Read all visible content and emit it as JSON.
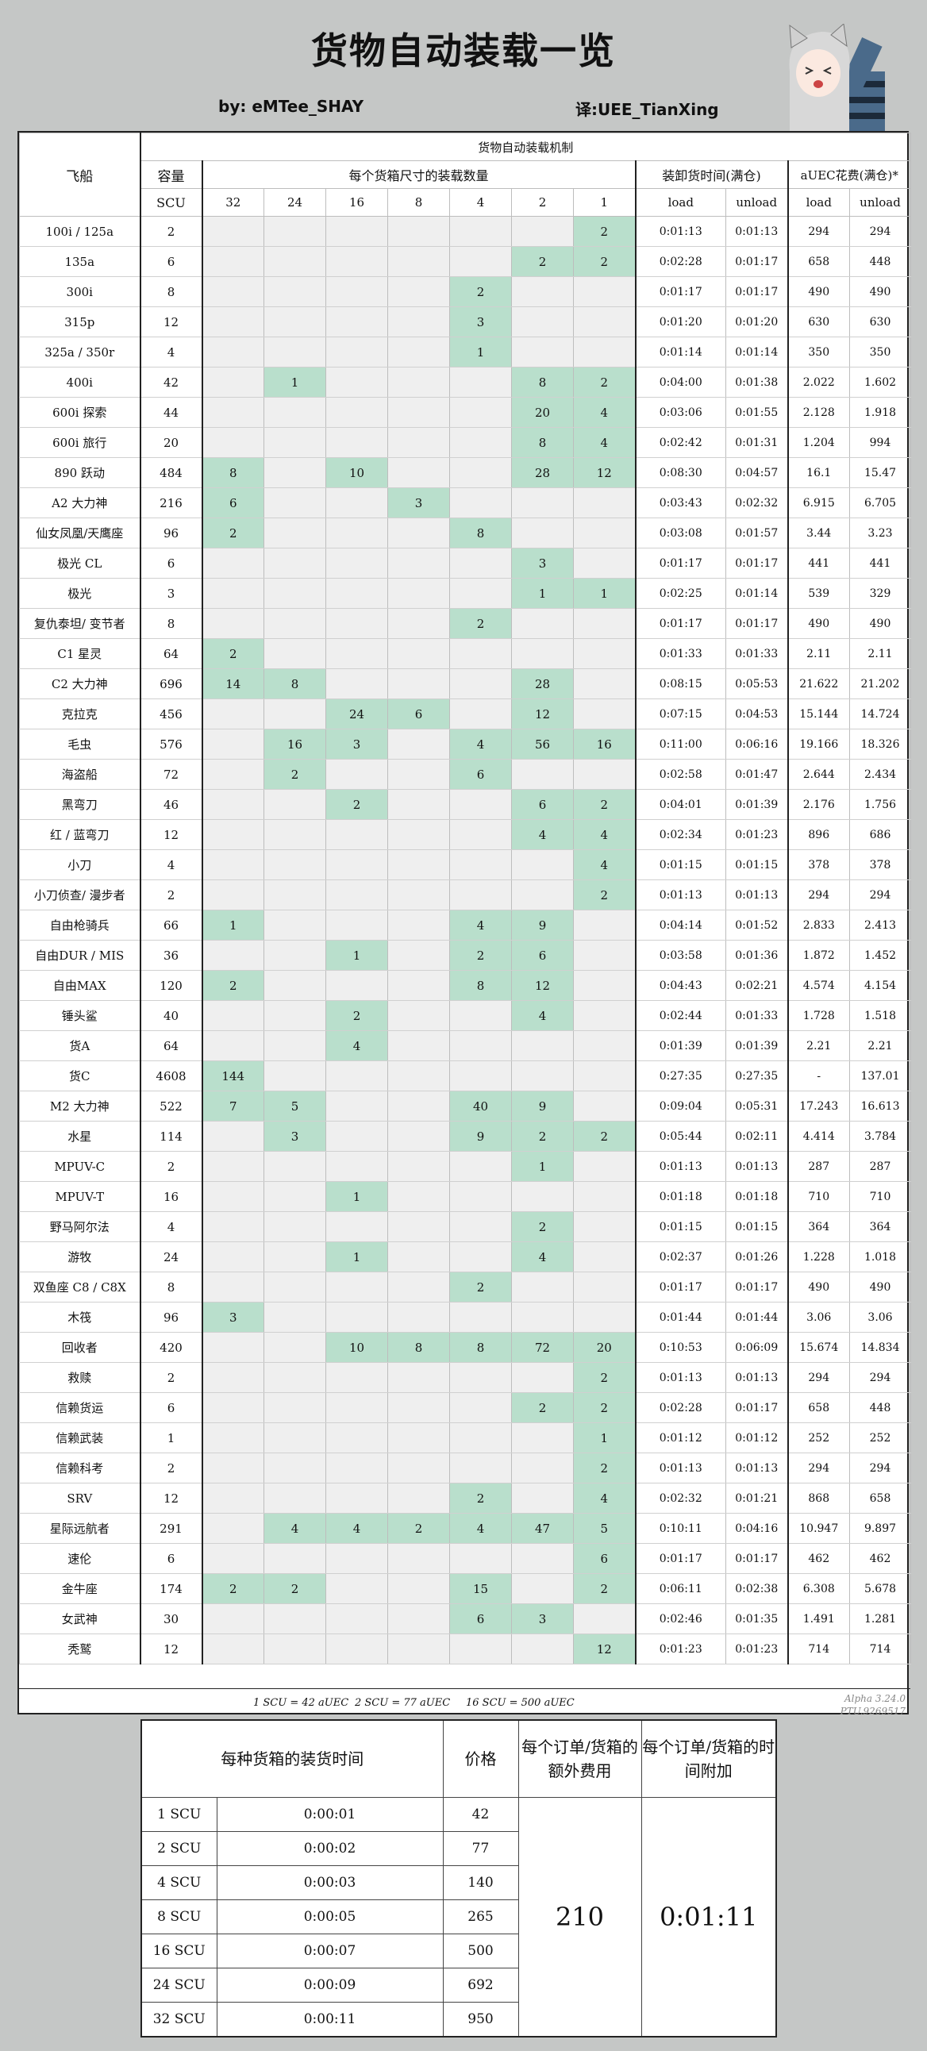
{
  "title": "货物自动装载一览",
  "by": "by:  eMTee_SHAY",
  "translator": "译:UEE_TianXing",
  "table": {
    "section_title": "货物自动装载机制",
    "col_ship": "飞船",
    "col_capacity": "容量",
    "col_capacity_unit": "SCU",
    "col_boxes": "每个货箱尺寸的装载数量",
    "box_sizes": [
      "32",
      "24",
      "16",
      "8",
      "4",
      "2",
      "1"
    ],
    "col_time": "装卸货时间(满仓)",
    "col_cost": "aUEC花费(满仓)*",
    "load": "load",
    "unload": "unload",
    "rows": [
      {
        "ship": "100i / 125a",
        "scu": "2",
        "boxes": [
          "",
          "",
          "",
          "",
          "",
          "",
          "2"
        ],
        "load": "0:01:13",
        "unload": "0:01:13",
        "cost_load": "294",
        "cost_unload": "294"
      },
      {
        "ship": "135a",
        "scu": "6",
        "boxes": [
          "",
          "",
          "",
          "",
          "",
          "2",
          "2"
        ],
        "load": "0:02:28",
        "unload": "0:01:17",
        "cost_load": "658",
        "cost_unload": "448"
      },
      {
        "ship": "300i",
        "scu": "8",
        "boxes": [
          "",
          "",
          "",
          "",
          "2",
          "",
          ""
        ],
        "load": "0:01:17",
        "unload": "0:01:17",
        "cost_load": "490",
        "cost_unload": "490"
      },
      {
        "ship": "315p",
        "scu": "12",
        "boxes": [
          "",
          "",
          "",
          "",
          "3",
          "",
          ""
        ],
        "load": "0:01:20",
        "unload": "0:01:20",
        "cost_load": "630",
        "cost_unload": "630"
      },
      {
        "ship": "325a / 350r",
        "scu": "4",
        "boxes": [
          "",
          "",
          "",
          "",
          "1",
          "",
          ""
        ],
        "load": "0:01:14",
        "unload": "0:01:14",
        "cost_load": "350",
        "cost_unload": "350"
      },
      {
        "ship": "400i",
        "scu": "42",
        "boxes": [
          "",
          "1",
          "",
          "",
          "",
          "8",
          "2"
        ],
        "load": "0:04:00",
        "unload": "0:01:38",
        "cost_load": "2.022",
        "cost_unload": "1.602"
      },
      {
        "ship": "600i 探索",
        "scu": "44",
        "boxes": [
          "",
          "",
          "",
          "",
          "",
          "20",
          "4"
        ],
        "load": "0:03:06",
        "unload": "0:01:55",
        "cost_load": "2.128",
        "cost_unload": "1.918"
      },
      {
        "ship": "600i 旅行",
        "scu": "20",
        "boxes": [
          "",
          "",
          "",
          "",
          "",
          "8",
          "4"
        ],
        "load": "0:02:42",
        "unload": "0:01:31",
        "cost_load": "1.204",
        "cost_unload": "994"
      },
      {
        "ship": "890 跃动",
        "scu": "484",
        "boxes": [
          "8",
          "",
          "10",
          "",
          "",
          "28",
          "12"
        ],
        "load": "0:08:30",
        "unload": "0:04:57",
        "cost_load": "16.1",
        "cost_unload": "15.47"
      },
      {
        "ship": "A2 大力神",
        "scu": "216",
        "boxes": [
          "6",
          "",
          "",
          "3",
          "",
          "",
          ""
        ],
        "load": "0:03:43",
        "unload": "0:02:32",
        "cost_load": "6.915",
        "cost_unload": "6.705"
      },
      {
        "ship": "仙女凤凰/天鹰座",
        "scu": "96",
        "boxes": [
          "2",
          "",
          "",
          "",
          "8",
          "",
          ""
        ],
        "load": "0:03:08",
        "unload": "0:01:57",
        "cost_load": "3.44",
        "cost_unload": "3.23"
      },
      {
        "ship": "极光 CL",
        "scu": "6",
        "boxes": [
          "",
          "",
          "",
          "",
          "",
          "3",
          ""
        ],
        "load": "0:01:17",
        "unload": "0:01:17",
        "cost_load": "441",
        "cost_unload": "441"
      },
      {
        "ship": "极光",
        "scu": "3",
        "boxes": [
          "",
          "",
          "",
          "",
          "",
          "1",
          "1"
        ],
        "load": "0:02:25",
        "unload": "0:01:14",
        "cost_load": "539",
        "cost_unload": "329"
      },
      {
        "ship": "复仇泰坦/ 变节者",
        "scu": "8",
        "boxes": [
          "",
          "",
          "",
          "",
          "2",
          "",
          ""
        ],
        "load": "0:01:17",
        "unload": "0:01:17",
        "cost_load": "490",
        "cost_unload": "490"
      },
      {
        "ship": "C1 星灵",
        "scu": "64",
        "boxes": [
          "2",
          "",
          "",
          "",
          "",
          "",
          ""
        ],
        "load": "0:01:33",
        "unload": "0:01:33",
        "cost_load": "2.11",
        "cost_unload": "2.11"
      },
      {
        "ship": "C2 大力神",
        "scu": "696",
        "boxes": [
          "14",
          "8",
          "",
          "",
          "",
          "28",
          ""
        ],
        "load": "0:08:15",
        "unload": "0:05:53",
        "cost_load": "21.622",
        "cost_unload": "21.202"
      },
      {
        "ship": "克拉克",
        "scu": "456",
        "boxes": [
          "",
          "",
          "24",
          "6",
          "",
          "12",
          ""
        ],
        "load": "0:07:15",
        "unload": "0:04:53",
        "cost_load": "15.144",
        "cost_unload": "14.724"
      },
      {
        "ship": "毛虫",
        "scu": "576",
        "boxes": [
          "",
          "16",
          "3",
          "",
          "4",
          "56",
          "16"
        ],
        "load": "0:11:00",
        "unload": "0:06:16",
        "cost_load": "19.166",
        "cost_unload": "18.326"
      },
      {
        "ship": "海盗船",
        "scu": "72",
        "boxes": [
          "",
          "2",
          "",
          "",
          "6",
          "",
          ""
        ],
        "load": "0:02:58",
        "unload": "0:01:47",
        "cost_load": "2.644",
        "cost_unload": "2.434"
      },
      {
        "ship": "黑弯刀",
        "scu": "46",
        "boxes": [
          "",
          "",
          "2",
          "",
          "",
          "6",
          "2"
        ],
        "load": "0:04:01",
        "unload": "0:01:39",
        "cost_load": "2.176",
        "cost_unload": "1.756"
      },
      {
        "ship": "红 / 蓝弯刀",
        "scu": "12",
        "boxes": [
          "",
          "",
          "",
          "",
          "",
          "4",
          "4"
        ],
        "load": "0:02:34",
        "unload": "0:01:23",
        "cost_load": "896",
        "cost_unload": "686"
      },
      {
        "ship": "小刀",
        "scu": "4",
        "boxes": [
          "",
          "",
          "",
          "",
          "",
          "",
          "4"
        ],
        "load": "0:01:15",
        "unload": "0:01:15",
        "cost_load": "378",
        "cost_unload": "378"
      },
      {
        "ship": "小刀侦查/ 漫步者",
        "scu": "2",
        "boxes": [
          "",
          "",
          "",
          "",
          "",
          "",
          "2"
        ],
        "load": "0:01:13",
        "unload": "0:01:13",
        "cost_load": "294",
        "cost_unload": "294"
      },
      {
        "ship": "自由枪骑兵",
        "scu": "66",
        "boxes": [
          "1",
          "",
          "",
          "",
          "4",
          "9",
          ""
        ],
        "load": "0:04:14",
        "unload": "0:01:52",
        "cost_load": "2.833",
        "cost_unload": "2.413"
      },
      {
        "ship": "自由DUR / MIS",
        "scu": "36",
        "boxes": [
          "",
          "",
          "1",
          "",
          "2",
          "6",
          ""
        ],
        "load": "0:03:58",
        "unload": "0:01:36",
        "cost_load": "1.872",
        "cost_unload": "1.452"
      },
      {
        "ship": "自由MAX",
        "scu": "120",
        "boxes": [
          "2",
          "",
          "",
          "",
          "8",
          "12",
          ""
        ],
        "load": "0:04:43",
        "unload": "0:02:21",
        "cost_load": "4.574",
        "cost_unload": "4.154"
      },
      {
        "ship": "锤头鲨",
        "scu": "40",
        "boxes": [
          "",
          "",
          "2",
          "",
          "",
          "4",
          ""
        ],
        "load": "0:02:44",
        "unload": "0:01:33",
        "cost_load": "1.728",
        "cost_unload": "1.518"
      },
      {
        "ship": "货A",
        "scu": "64",
        "boxes": [
          "",
          "",
          "4",
          "",
          "",
          "",
          ""
        ],
        "load": "0:01:39",
        "unload": "0:01:39",
        "cost_load": "2.21",
        "cost_unload": "2.21"
      },
      {
        "ship": "货C",
        "scu": "4608",
        "boxes": [
          "144",
          "",
          "",
          "",
          "",
          "",
          ""
        ],
        "load": "0:27:35",
        "unload": "0:27:35",
        "cost_load": "-",
        "cost_unload": "137.01"
      },
      {
        "ship": "M2 大力神",
        "scu": "522",
        "boxes": [
          "7",
          "5",
          "",
          "",
          "40",
          "9",
          ""
        ],
        "load": "0:09:04",
        "unload": "0:05:31",
        "cost_load": "17.243",
        "cost_unload": "16.613"
      },
      {
        "ship": "水星",
        "scu": "114",
        "boxes": [
          "",
          "3",
          "",
          "",
          "9",
          "2",
          "2"
        ],
        "load": "0:05:44",
        "unload": "0:02:11",
        "cost_load": "4.414",
        "cost_unload": "3.784"
      },
      {
        "ship": "MPUV-C",
        "scu": "2",
        "boxes": [
          "",
          "",
          "",
          "",
          "",
          "1",
          ""
        ],
        "load": "0:01:13",
        "unload": "0:01:13",
        "cost_load": "287",
        "cost_unload": "287"
      },
      {
        "ship": "MPUV-T",
        "scu": "16",
        "boxes": [
          "",
          "",
          "1",
          "",
          "",
          "",
          ""
        ],
        "load": "0:01:18",
        "unload": "0:01:18",
        "cost_load": "710",
        "cost_unload": "710"
      },
      {
        "ship": "野马阿尔法",
        "scu": "4",
        "boxes": [
          "",
          "",
          "",
          "",
          "",
          "2",
          ""
        ],
        "load": "0:01:15",
        "unload": "0:01:15",
        "cost_load": "364",
        "cost_unload": "364"
      },
      {
        "ship": "游牧",
        "scu": "24",
        "boxes": [
          "",
          "",
          "1",
          "",
          "",
          "4",
          ""
        ],
        "load": "0:02:37",
        "unload": "0:01:26",
        "cost_load": "1.228",
        "cost_unload": "1.018"
      },
      {
        "ship": "双鱼座 C8 / C8X",
        "scu": "8",
        "boxes": [
          "",
          "",
          "",
          "",
          "2",
          "",
          ""
        ],
        "load": "0:01:17",
        "unload": "0:01:17",
        "cost_load": "490",
        "cost_unload": "490"
      },
      {
        "ship": "木筏",
        "scu": "96",
        "boxes": [
          "3",
          "",
          "",
          "",
          "",
          "",
          ""
        ],
        "load": "0:01:44",
        "unload": "0:01:44",
        "cost_load": "3.06",
        "cost_unload": "3.06"
      },
      {
        "ship": "回收者",
        "scu": "420",
        "boxes": [
          "",
          "",
          "10",
          "8",
          "8",
          "72",
          "20"
        ],
        "load": "0:10:53",
        "unload": "0:06:09",
        "cost_load": "15.674",
        "cost_unload": "14.834"
      },
      {
        "ship": "救赎",
        "scu": "2",
        "boxes": [
          "",
          "",
          "",
          "",
          "",
          "",
          "2"
        ],
        "load": "0:01:13",
        "unload": "0:01:13",
        "cost_load": "294",
        "cost_unload": "294"
      },
      {
        "ship": "信赖货运",
        "scu": "6",
        "boxes": [
          "",
          "",
          "",
          "",
          "",
          "2",
          "2"
        ],
        "load": "0:02:28",
        "unload": "0:01:17",
        "cost_load": "658",
        "cost_unload": "448"
      },
      {
        "ship": "信赖武装",
        "scu": "1",
        "boxes": [
          "",
          "",
          "",
          "",
          "",
          "",
          "1"
        ],
        "load": "0:01:12",
        "unload": "0:01:12",
        "cost_load": "252",
        "cost_unload": "252"
      },
      {
        "ship": "信赖科考",
        "scu": "2",
        "boxes": [
          "",
          "",
          "",
          "",
          "",
          "",
          "2"
        ],
        "load": "0:01:13",
        "unload": "0:01:13",
        "cost_load": "294",
        "cost_unload": "294"
      },
      {
        "ship": "SRV",
        "scu": "12",
        "boxes": [
          "",
          "",
          "",
          "",
          "2",
          "",
          "4"
        ],
        "load": "0:02:32",
        "unload": "0:01:21",
        "cost_load": "868",
        "cost_unload": "658"
      },
      {
        "ship": "星际远航者",
        "scu": "291",
        "boxes": [
          "",
          "4",
          "4",
          "2",
          "4",
          "47",
          "5"
        ],
        "load": "0:10:11",
        "unload": "0:04:16",
        "cost_load": "10.947",
        "cost_unload": "9.897"
      },
      {
        "ship": "速伦",
        "scu": "6",
        "boxes": [
          "",
          "",
          "",
          "",
          "",
          "",
          "6"
        ],
        "load": "0:01:17",
        "unload": "0:01:17",
        "cost_load": "462",
        "cost_unload": "462"
      },
      {
        "ship": "金牛座",
        "scu": "174",
        "boxes": [
          "2",
          "2",
          "",
          "",
          "15",
          "",
          "2"
        ],
        "load": "0:06:11",
        "unload": "0:02:38",
        "cost_load": "6.308",
        "cost_unload": "5.678"
      },
      {
        "ship": "女武神",
        "scu": "30",
        "boxes": [
          "",
          "",
          "",
          "",
          "6",
          "3",
          ""
        ],
        "load": "0:02:46",
        "unload": "0:01:35",
        "cost_load": "1.491",
        "cost_unload": "1.281"
      },
      {
        "ship": "秃鹫",
        "scu": "12",
        "boxes": [
          "",
          "",
          "",
          "",
          "",
          "",
          "12"
        ],
        "load": "0:01:23",
        "unload": "0:01:23",
        "cost_load": "714",
        "cost_unload": "714"
      }
    ],
    "footnotes": [
      "1 SCU = 42 aUEC",
      "2 SCU = 77 aUEC",
      "16 SCU = 500 aUEC"
    ],
    "version": [
      "Alpha 3.24.0",
      "PTU.9269517"
    ]
  },
  "bottom": {
    "col_time": "每种货箱的装货时间",
    "col_price": "价格",
    "col_fee": "每个订单/货箱的额外费用",
    "col_extra_time": "每个订单/货箱的时间附加",
    "rows": [
      {
        "size": "1 SCU",
        "time": "0:00:01",
        "price": "42"
      },
      {
        "size": "2 SCU",
        "time": "0:00:02",
        "price": "77"
      },
      {
        "size": "4 SCU",
        "time": "0:00:03",
        "price": "140"
      },
      {
        "size": "8 SCU",
        "time": "0:00:05",
        "price": "265"
      },
      {
        "size": "16 SCU",
        "time": "0:00:07",
        "price": "500"
      },
      {
        "size": "24 SCU",
        "time": "0:00:09",
        "price": "692"
      },
      {
        "size": "32 SCU",
        "time": "0:00:11",
        "price": "950"
      }
    ],
    "fee": "210",
    "extra_time": "0:01:11"
  }
}
